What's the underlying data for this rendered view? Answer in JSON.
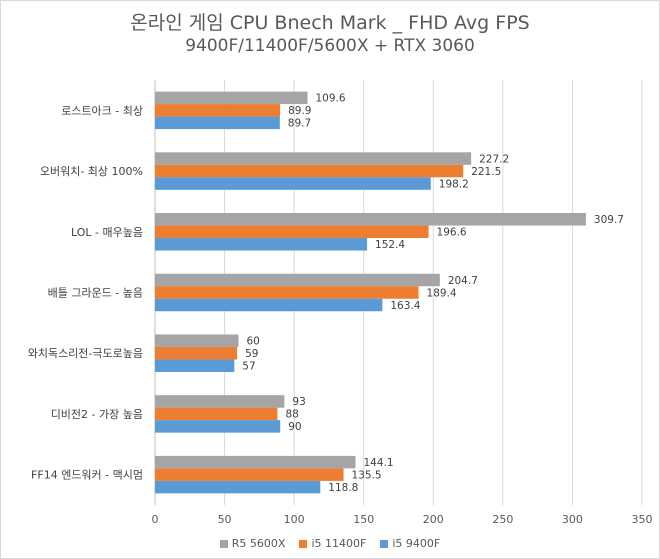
{
  "chart_data": {
    "type": "bar",
    "orientation": "horizontal",
    "title": "온라인 게임 CPU Bnech Mark _ FHD Avg FPS",
    "subtitle": "9400F/11400F/5600X + RTX 3060",
    "categories": [
      "로스트아크 - 최상",
      "오버워치- 최상 100%",
      "LOL - 매우높음",
      "배틀 그라운드 - 높음",
      "와치독스리전-극도로높음",
      "디비전2 - 가장 높음",
      "FF14 엔드워커 - 맥시멈"
    ],
    "series": [
      {
        "name": "R5 5600X",
        "color": "#a5a5a5",
        "values": [
          109.6,
          227.2,
          309.7,
          204.7,
          60,
          93,
          144.1
        ]
      },
      {
        "name": "i5 11400F",
        "color": "#ed7d31",
        "values": [
          89.9,
          221.5,
          196.6,
          189.4,
          59,
          88,
          135.5
        ]
      },
      {
        "name": "i5 9400F",
        "color": "#5b9bd5",
        "values": [
          89.7,
          198.2,
          152.4,
          163.4,
          57,
          90,
          118.8
        ]
      }
    ],
    "xlim": [
      0,
      350
    ],
    "xticks": [
      0,
      50,
      100,
      150,
      200,
      250,
      300,
      350
    ],
    "grid": true,
    "legend_position": "bottom"
  }
}
